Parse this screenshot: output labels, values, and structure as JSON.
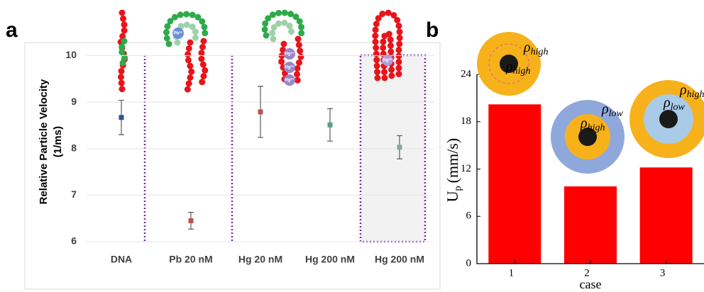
{
  "chart_data": [
    {
      "type": "errorbar",
      "panel_label": "a",
      "ylabel": [
        "Relative Particle Velocity",
        "(1/ms)"
      ],
      "categories": [
        "DNA",
        "Pb 20 nM",
        "Hg 20 nM",
        "Hg 200 nM",
        "Hg 200 nM"
      ],
      "values": [
        8.67,
        6.45,
        8.79,
        8.51,
        8.03
      ],
      "errors": [
        0.37,
        0.18,
        0.55,
        0.35,
        0.25
      ],
      "colors": [
        "#2f5597",
        "#c0504d",
        "#c0504d",
        "#5b9b8a",
        "#7faa9c"
      ],
      "ion_labels": [
        "Pb²⁺",
        "Hg²⁺",
        "Hg²⁺",
        "Hg²⁺",
        "Hg²⁺"
      ],
      "ylim": [
        6,
        10.25
      ],
      "yticks": [
        6,
        7,
        8,
        9,
        10
      ],
      "grid": true
    },
    {
      "type": "bar",
      "panel_label": "b",
      "ylabel": [
        "U",
        "p",
        "(mm/s)"
      ],
      "xlabel": "case",
      "categories": [
        "1",
        "2",
        "3"
      ],
      "values": [
        20.2,
        9.8,
        12.2
      ],
      "color": "#ff0000",
      "ylim": [
        0,
        24
      ],
      "yticks": [
        0,
        6,
        12,
        18,
        24
      ],
      "density_symbol": "ρ",
      "diagrams": [
        {
          "outer": "high",
          "inner": "high"
        },
        {
          "outer": "low",
          "inner": "high"
        },
        {
          "outer": "high",
          "inner": "low"
        }
      ]
    }
  ]
}
